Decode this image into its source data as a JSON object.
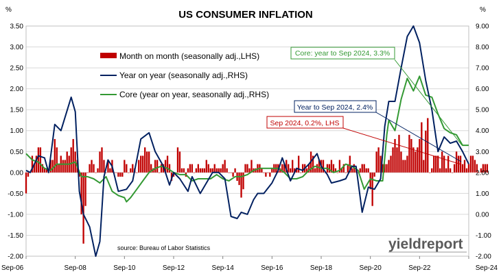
{
  "chart_data": {
    "type": "bar",
    "title": "US CONSUMER INFLATION",
    "y_unit_left": "%",
    "y_unit_right": "%",
    "x_ticks": [
      "Sep-06",
      "Sep-08",
      "Sep-10",
      "Sep-12",
      "Sep-14",
      "Sep-16",
      "Sep-18",
      "Sep-20",
      "Sep-22",
      "Sep-24"
    ],
    "y_left_ticks": [
      "3.50",
      "3.00",
      "2.50",
      "2.00",
      "1.50",
      "1.00",
      "0.50",
      "0.00",
      "-0.50",
      "-1.00",
      "-1.50",
      "-2.00"
    ],
    "y_right_ticks": [
      "9.00",
      "8.00",
      "7.00",
      "6.00",
      "5.00",
      "4.00",
      "3.00",
      "2.00",
      "1.00",
      "0.00",
      "-1.00",
      "-2.00"
    ],
    "ylim_left": [
      -2.0,
      3.5
    ],
    "ylim_right": [
      -2.0,
      9.0
    ],
    "grid": "horizontal",
    "legend_placement": "top-left",
    "series": [
      {
        "name": "Month on month (seasonally adj.,LHS)",
        "type": "bar",
        "axis": "left",
        "color": "#c00000",
        "x_start": "2006-09",
        "values": [
          -0.5,
          -0.1,
          0.0,
          0.4,
          0.2,
          0.4,
          0.6,
          0.6,
          0.2,
          0.1,
          0.1,
          0.0,
          0.3,
          0.3,
          0.8,
          0.6,
          0.2,
          0.4,
          0.3,
          0.3,
          0.5,
          0.4,
          0.6,
          0.8,
          0.5,
          0.3,
          -0.1,
          -1.0,
          -1.7,
          -0.8,
          0.0,
          0.2,
          0.3,
          0.2,
          0.0,
          0.1,
          0.5,
          0.6,
          0.3,
          0.0,
          0.3,
          0.1,
          0.3,
          0.0,
          0.0,
          -0.1,
          -0.1,
          -0.1,
          0.3,
          0.2,
          0.0,
          0.1,
          0.2,
          0.1,
          0.0,
          0.3,
          0.4,
          0.4,
          0.6,
          0.5,
          0.5,
          0.2,
          0.1,
          0.3,
          0.3,
          0.0,
          0.2,
          0.2,
          0.3,
          0.4,
          0.2,
          -0.2,
          -0.1,
          0.0,
          0.6,
          0.5,
          0.1,
          0.1,
          -0.1,
          0.1,
          0.2,
          0.2,
          0.0,
          0.1,
          0.2,
          0.1,
          0.1,
          0.1,
          0.3,
          0.2,
          0.1,
          0.1,
          0.2,
          0.1,
          0.1,
          0.1,
          0.2,
          0.3,
          0.1,
          0.0,
          0.0,
          -0.1,
          0.1,
          -0.2,
          -0.3,
          -0.6,
          -0.4,
          0.2,
          0.2,
          0.1,
          0.3,
          0.1,
          0.1,
          0.2,
          0.2,
          0.1,
          0.0,
          -0.1,
          0.0,
          -0.1,
          0.1,
          0.2,
          0.2,
          0.2,
          0.1,
          0.2,
          0.2,
          0.3,
          0.2,
          0.1,
          0.3,
          0.1,
          0.1,
          0.4,
          0.0,
          0.2,
          0.2,
          0.1,
          0.2,
          0.5,
          0.4,
          0.1,
          0.2,
          0.3,
          0.3,
          0.3,
          0.0,
          0.2,
          0.2,
          0.3,
          0.2,
          0.1,
          0.0,
          0.3,
          0.1,
          0.2,
          0.0,
          0.2,
          0.4,
          0.1,
          0.2,
          0.1,
          0.0,
          0.1,
          0.2,
          0.2,
          0.1,
          0.1,
          -0.4,
          -0.8,
          -0.1,
          0.5,
          0.6,
          0.4,
          0.2,
          0.2,
          0.2,
          0.3,
          0.4,
          0.6,
          0.8,
          0.6,
          0.9,
          0.5,
          0.3,
          0.3,
          0.4,
          0.9,
          0.8,
          0.6,
          0.5,
          0.6,
          0.8,
          1.2,
          0.3,
          1.0,
          1.3,
          0.0,
          0.1,
          0.4,
          0.4,
          0.4,
          0.1,
          0.5,
          0.4,
          0.1,
          0.4,
          0.1,
          0.0,
          0.2,
          0.5,
          0.4,
          0.4,
          0.2,
          0.3,
          0.1,
          0.2,
          0.4,
          0.4,
          0.3,
          0.2,
          0.0,
          0.1,
          0.2,
          0.2,
          0.2
        ],
        "note": "Sep 2024, 0.2%, LHS"
      },
      {
        "name": "Year on year (seasonally adj.,RHS)",
        "type": "line",
        "axis": "right",
        "color": "#002060",
        "points": [
          [
            "2006-09",
            2.1
          ],
          [
            "2006-11",
            2.0
          ],
          [
            "2007-03",
            2.8
          ],
          [
            "2007-06",
            2.7
          ],
          [
            "2007-08",
            2.0
          ],
          [
            "2007-11",
            4.3
          ],
          [
            "2008-02",
            4.0
          ],
          [
            "2008-07",
            5.6
          ],
          [
            "2008-09",
            4.9
          ],
          [
            "2008-11",
            1.1
          ],
          [
            "2009-01",
            0.0
          ],
          [
            "2009-04",
            -0.6
          ],
          [
            "2009-07",
            -2.0
          ],
          [
            "2009-09",
            -1.3
          ],
          [
            "2009-11",
            1.8
          ],
          [
            "2010-01",
            2.6
          ],
          [
            "2010-03",
            2.3
          ],
          [
            "2010-06",
            1.1
          ],
          [
            "2010-10",
            1.2
          ],
          [
            "2011-01",
            1.6
          ],
          [
            "2011-05",
            3.6
          ],
          [
            "2011-09",
            3.9
          ],
          [
            "2011-12",
            3.0
          ],
          [
            "2012-04",
            2.3
          ],
          [
            "2012-07",
            1.4
          ],
          [
            "2012-09",
            2.0
          ],
          [
            "2012-12",
            1.7
          ],
          [
            "2013-04",
            1.1
          ],
          [
            "2013-06",
            1.8
          ],
          [
            "2013-10",
            1.0
          ],
          [
            "2014-04",
            2.0
          ],
          [
            "2014-07",
            2.0
          ],
          [
            "2014-10",
            1.7
          ],
          [
            "2015-01",
            -0.1
          ],
          [
            "2015-04",
            -0.2
          ],
          [
            "2015-06",
            0.1
          ],
          [
            "2015-09",
            0.0
          ],
          [
            "2015-12",
            0.7
          ],
          [
            "2016-02",
            1.0
          ],
          [
            "2016-05",
            1.0
          ],
          [
            "2016-09",
            1.5
          ],
          [
            "2016-12",
            2.1
          ],
          [
            "2017-02",
            2.7
          ],
          [
            "2017-06",
            1.6
          ],
          [
            "2017-09",
            2.2
          ],
          [
            "2017-12",
            2.1
          ],
          [
            "2018-03",
            2.4
          ],
          [
            "2018-07",
            2.9
          ],
          [
            "2018-09",
            2.3
          ],
          [
            "2018-12",
            1.9
          ],
          [
            "2019-02",
            1.5
          ],
          [
            "2019-06",
            1.6
          ],
          [
            "2019-09",
            1.7
          ],
          [
            "2019-12",
            2.3
          ],
          [
            "2020-02",
            2.3
          ],
          [
            "2020-05",
            0.1
          ],
          [
            "2020-08",
            1.3
          ],
          [
            "2020-11",
            1.2
          ],
          [
            "2021-02",
            1.7
          ],
          [
            "2021-04",
            4.2
          ],
          [
            "2021-06",
            5.4
          ],
          [
            "2021-09",
            5.4
          ],
          [
            "2021-12",
            7.0
          ],
          [
            "2022-03",
            8.5
          ],
          [
            "2022-06",
            9.0
          ],
          [
            "2022-09",
            8.2
          ],
          [
            "2022-12",
            6.4
          ],
          [
            "2023-03",
            5.0
          ],
          [
            "2023-06",
            3.0
          ],
          [
            "2023-09",
            3.7
          ],
          [
            "2023-12",
            3.4
          ],
          [
            "2024-03",
            3.5
          ],
          [
            "2024-06",
            3.0
          ],
          [
            "2024-09",
            2.4
          ]
        ],
        "note": "Year to Sep 2024, 2.4%"
      },
      {
        "name": "Core (year on year, seasonally adj.,RHS)",
        "type": "line",
        "axis": "right",
        "color": "#339933",
        "points": [
          [
            "2006-09",
            2.9
          ],
          [
            "2006-12",
            2.6
          ],
          [
            "2007-03",
            2.5
          ],
          [
            "2007-06",
            2.2
          ],
          [
            "2007-09",
            2.1
          ],
          [
            "2007-12",
            2.4
          ],
          [
            "2008-03",
            2.4
          ],
          [
            "2008-06",
            2.4
          ],
          [
            "2008-09",
            2.5
          ],
          [
            "2008-12",
            1.8
          ],
          [
            "2009-03",
            1.8
          ],
          [
            "2009-06",
            1.7
          ],
          [
            "2009-09",
            1.5
          ],
          [
            "2009-12",
            1.8
          ],
          [
            "2010-03",
            1.1
          ],
          [
            "2010-06",
            0.9
          ],
          [
            "2010-09",
            0.8
          ],
          [
            "2010-10",
            0.6
          ],
          [
            "2010-12",
            0.8
          ],
          [
            "2011-03",
            1.2
          ],
          [
            "2011-06",
            1.6
          ],
          [
            "2011-09",
            2.0
          ],
          [
            "2011-12",
            2.2
          ],
          [
            "2012-03",
            2.3
          ],
          [
            "2012-06",
            2.2
          ],
          [
            "2012-09",
            2.0
          ],
          [
            "2012-12",
            1.9
          ],
          [
            "2013-03",
            1.9
          ],
          [
            "2013-06",
            1.6
          ],
          [
            "2013-09",
            1.7
          ],
          [
            "2013-12",
            1.7
          ],
          [
            "2014-03",
            1.7
          ],
          [
            "2014-06",
            1.9
          ],
          [
            "2014-09",
            1.7
          ],
          [
            "2014-12",
            1.6
          ],
          [
            "2015-03",
            1.8
          ],
          [
            "2015-06",
            1.8
          ],
          [
            "2015-09",
            1.9
          ],
          [
            "2015-12",
            2.1
          ],
          [
            "2016-03",
            2.2
          ],
          [
            "2016-06",
            2.2
          ],
          [
            "2016-09",
            2.2
          ],
          [
            "2016-12",
            2.2
          ],
          [
            "2017-03",
            2.0
          ],
          [
            "2017-06",
            1.7
          ],
          [
            "2017-09",
            1.7
          ],
          [
            "2017-12",
            1.8
          ],
          [
            "2018-03",
            2.1
          ],
          [
            "2018-06",
            2.3
          ],
          [
            "2018-09",
            2.2
          ],
          [
            "2018-12",
            2.2
          ],
          [
            "2019-03",
            2.0
          ],
          [
            "2019-06",
            2.1
          ],
          [
            "2019-09",
            2.4
          ],
          [
            "2019-12",
            2.3
          ],
          [
            "2020-03",
            2.1
          ],
          [
            "2020-06",
            1.2
          ],
          [
            "2020-09",
            1.7
          ],
          [
            "2020-12",
            1.6
          ],
          [
            "2021-03",
            1.6
          ],
          [
            "2021-05",
            3.8
          ],
          [
            "2021-06",
            4.5
          ],
          [
            "2021-09",
            4.0
          ],
          [
            "2021-12",
            5.5
          ],
          [
            "2022-03",
            6.5
          ],
          [
            "2022-06",
            5.9
          ],
          [
            "2022-09",
            6.6
          ],
          [
            "2022-12",
            5.7
          ],
          [
            "2023-03",
            5.6
          ],
          [
            "2023-06",
            4.8
          ],
          [
            "2023-09",
            4.1
          ],
          [
            "2023-12",
            3.9
          ],
          [
            "2024-03",
            3.8
          ],
          [
            "2024-06",
            3.3
          ],
          [
            "2024-09",
            3.3
          ]
        ],
        "note": "Core: year to Sep 2024, 3.3%"
      }
    ],
    "source": "source: Bureau of Labor Statistics",
    "brand": "yieldreport"
  }
}
